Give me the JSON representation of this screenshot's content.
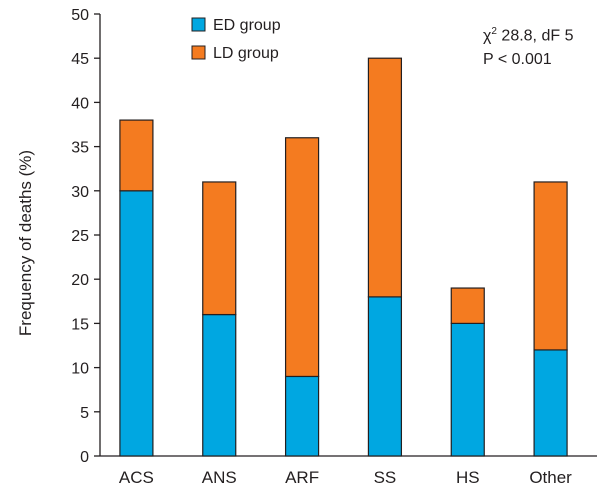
{
  "chart_data": {
    "type": "bar",
    "stacked": true,
    "categories": [
      "ACS",
      "ANS",
      "ARF",
      "SS",
      "HS",
      "Other"
    ],
    "series": [
      {
        "name": "ED group",
        "color": "#00a7e1",
        "values": [
          30,
          16,
          9,
          18,
          15,
          12
        ]
      },
      {
        "name": "LD group",
        "color": "#f47b20",
        "values": [
          8,
          15,
          27,
          27,
          4,
          19
        ]
      }
    ],
    "ylabel": "Frequency of deaths (%)",
    "xlabel": "",
    "ylim": [
      0,
      50
    ],
    "yticks": [
      0,
      5,
      10,
      15,
      20,
      25,
      30,
      35,
      40,
      45,
      50
    ],
    "grid": false,
    "legend_position": "top-center",
    "annotation": {
      "line1_symbol": "χ",
      "line1_sup": "2",
      "line1_text": " 28.8, dF 5",
      "line2": "P < 0.001"
    }
  }
}
